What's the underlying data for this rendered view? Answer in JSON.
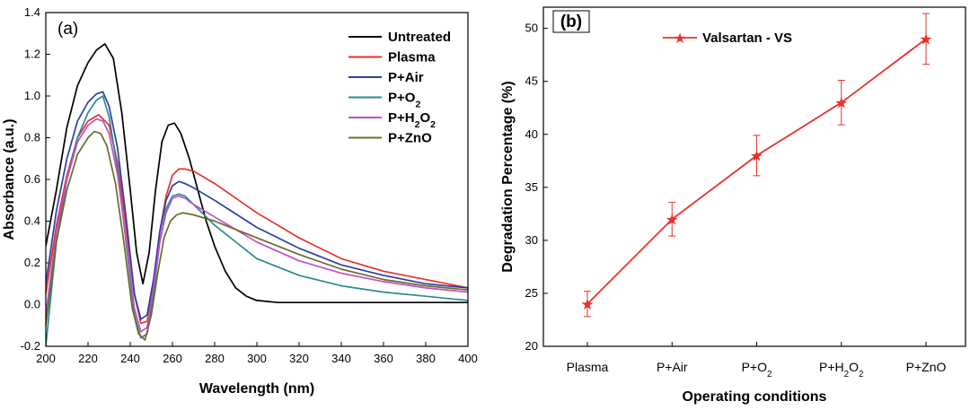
{
  "chart_data": [
    {
      "type": "line",
      "panel_label": "(a)",
      "xlabel": "Wavelength (nm)",
      "ylabel": "Absorbance (a.u.)",
      "xlim": [
        200,
        400
      ],
      "ylim": [
        -0.2,
        1.4
      ],
      "xticks": [
        200,
        220,
        240,
        260,
        280,
        300,
        320,
        340,
        360,
        380,
        400
      ],
      "yticks": [
        -0.2,
        0.0,
        0.2,
        0.4,
        0.6,
        0.8,
        1.0,
        1.2,
        1.4
      ],
      "legend_position": "top-right",
      "series": [
        {
          "name": "Untreated",
          "legend": [
            "Untreated"
          ],
          "color": "#000000",
          "x": [
            200,
            205,
            210,
            215,
            220,
            224,
            228,
            232,
            236,
            240,
            243,
            246,
            249,
            252,
            255,
            258,
            261,
            264,
            268,
            272,
            276,
            280,
            285,
            290,
            295,
            300,
            305,
            310,
            320,
            340,
            360,
            380,
            400
          ],
          "y": [
            0.28,
            0.55,
            0.85,
            1.05,
            1.16,
            1.22,
            1.25,
            1.18,
            0.92,
            0.55,
            0.25,
            0.1,
            0.25,
            0.55,
            0.78,
            0.86,
            0.87,
            0.82,
            0.7,
            0.55,
            0.4,
            0.28,
            0.16,
            0.08,
            0.04,
            0.02,
            0.015,
            0.01,
            0.01,
            0.01,
            0.01,
            0.01,
            0.01
          ]
        },
        {
          "name": "Plasma",
          "legend": [
            "Plasma"
          ],
          "color": "#e8322b",
          "x": [
            200,
            205,
            210,
            215,
            220,
            225,
            230,
            234,
            238,
            242,
            245,
            248,
            251,
            254,
            257,
            260,
            263,
            266,
            270,
            280,
            300,
            320,
            340,
            360,
            380,
            400
          ],
          "y": [
            0.05,
            0.38,
            0.62,
            0.8,
            0.88,
            0.91,
            0.86,
            0.68,
            0.38,
            0.05,
            -0.09,
            -0.08,
            0.1,
            0.35,
            0.52,
            0.62,
            0.65,
            0.65,
            0.64,
            0.58,
            0.44,
            0.32,
            0.22,
            0.16,
            0.12,
            0.08
          ]
        },
        {
          "name": "P+Air",
          "legend": [
            "P+Air"
          ],
          "color": "#2d3fa0",
          "x": [
            200,
            205,
            210,
            215,
            220,
            224,
            227,
            230,
            234,
            238,
            242,
            245,
            248,
            251,
            254,
            257,
            260,
            263,
            266,
            270,
            280,
            300,
            320,
            340,
            360,
            380,
            400
          ],
          "y": [
            0.1,
            0.45,
            0.7,
            0.88,
            0.97,
            1.01,
            1.02,
            0.95,
            0.75,
            0.42,
            0.05,
            -0.07,
            -0.05,
            0.12,
            0.35,
            0.5,
            0.57,
            0.59,
            0.58,
            0.56,
            0.5,
            0.37,
            0.27,
            0.19,
            0.14,
            0.1,
            0.08
          ]
        },
        {
          "name": "P+O2",
          "legend": [
            "P+O",
            "2",
            ""
          ],
          "color": "#2a8c8c",
          "x": [
            200,
            205,
            210,
            215,
            220,
            224,
            227,
            230,
            234,
            238,
            242,
            245,
            248,
            251,
            254,
            257,
            260,
            263,
            266,
            270,
            280,
            300,
            320,
            340,
            360,
            380,
            400
          ],
          "y": [
            -0.2,
            0.3,
            0.6,
            0.8,
            0.92,
            0.98,
            1.0,
            0.9,
            0.65,
            0.3,
            -0.05,
            -0.16,
            -0.14,
            0.05,
            0.3,
            0.46,
            0.52,
            0.53,
            0.52,
            0.48,
            0.38,
            0.22,
            0.14,
            0.09,
            0.06,
            0.04,
            0.02
          ]
        },
        {
          "name": "P+H2O2",
          "legend": [
            " P+H",
            "2",
            "O",
            "2",
            ""
          ],
          "color": "#c050c8",
          "x": [
            200,
            205,
            210,
            215,
            220,
            224,
            227,
            230,
            234,
            238,
            242,
            245,
            248,
            251,
            254,
            257,
            260,
            263,
            266,
            270,
            280,
            300,
            320,
            340,
            360,
            380,
            400
          ],
          "y": [
            -0.05,
            0.35,
            0.6,
            0.78,
            0.86,
            0.89,
            0.88,
            0.82,
            0.62,
            0.32,
            -0.02,
            -0.13,
            -0.11,
            0.08,
            0.3,
            0.44,
            0.51,
            0.52,
            0.51,
            0.48,
            0.42,
            0.3,
            0.21,
            0.15,
            0.11,
            0.08,
            0.06
          ]
        },
        {
          "name": "P+ZnO",
          "legend": [
            "P+ZnO"
          ],
          "color": "#6b6b28",
          "x": [
            200,
            205,
            210,
            215,
            220,
            223,
            226,
            229,
            233,
            237,
            241,
            244,
            247,
            250,
            253,
            256,
            259,
            262,
            265,
            270,
            280,
            300,
            320,
            340,
            360,
            380,
            400
          ],
          "y": [
            -0.1,
            0.3,
            0.55,
            0.72,
            0.8,
            0.83,
            0.82,
            0.76,
            0.58,
            0.3,
            -0.02,
            -0.14,
            -0.17,
            -0.05,
            0.15,
            0.32,
            0.4,
            0.43,
            0.44,
            0.43,
            0.4,
            0.32,
            0.24,
            0.17,
            0.12,
            0.09,
            0.07
          ]
        }
      ]
    },
    {
      "type": "line",
      "panel_label": "(b)",
      "xlabel": "Operating conditions",
      "ylabel": "Degradation Percentage (%)",
      "ylim": [
        20,
        52
      ],
      "yticks": [
        20,
        25,
        30,
        35,
        40,
        45,
        50
      ],
      "categories": [
        [
          "Plasma"
        ],
        [
          "P+Air"
        ],
        [
          "P+O",
          "2",
          ""
        ],
        [
          "P+H",
          "2",
          "O",
          "2",
          ""
        ],
        [
          "P+ZnO"
        ]
      ],
      "legend_position": "top-left",
      "series": [
        {
          "name": "Valsartan - VS",
          "color": "#e8322b",
          "marker": "star",
          "values": [
            24,
            32,
            38,
            43,
            49
          ],
          "errors": [
            1.2,
            1.6,
            1.9,
            2.1,
            2.4
          ]
        }
      ]
    }
  ]
}
